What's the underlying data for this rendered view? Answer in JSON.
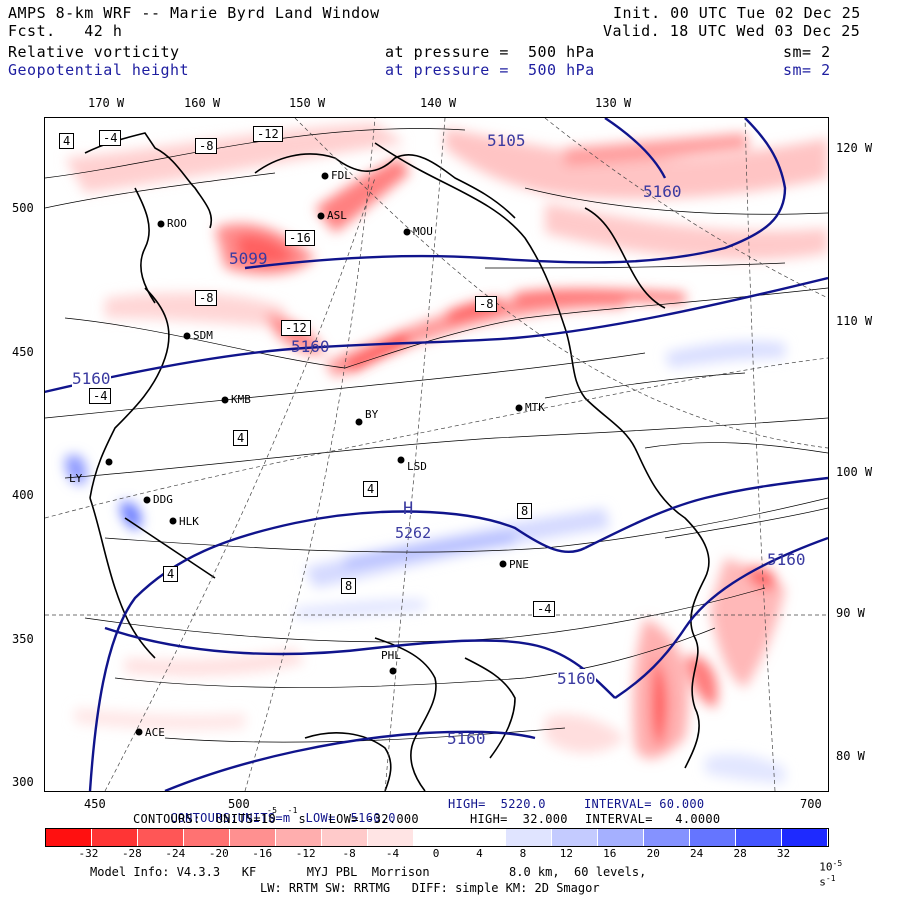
{
  "header": {
    "title_left": "AMPS 8-km WRF -- Marie Byrd Land Window",
    "fcst": "Fcst.   42 h",
    "init": "Init. 00 UTC Tue 02 Dec 25",
    "valid": "Valid. 18 UTC Wed 03 Dec 25",
    "field1": "Relative vorticity",
    "field1_level": "at pressure =  500 hPa",
    "field1_sm": "sm= 2",
    "field2": "Geopotential height",
    "field2_level": "at pressure =  500 hPa",
    "field2_sm": "sm= 2"
  },
  "axes": {
    "top_lon_labels": [
      "170 W",
      "160 W",
      "150 W",
      "140 W",
      "130 W"
    ],
    "right_lon_labels": [
      "120 W",
      "110 W",
      "100 W",
      "90 W",
      "80 W"
    ],
    "left_ticks": [
      "500",
      "450",
      "400",
      "350",
      "300"
    ],
    "bottom_ticks": [
      "450",
      "500",
      "700"
    ]
  },
  "stations": [
    {
      "code": "ROO"
    },
    {
      "code": "FDL"
    },
    {
      "code": "ASL"
    },
    {
      "code": "MOU"
    },
    {
      "code": "SDM"
    },
    {
      "code": "KMB"
    },
    {
      "code": "MTK"
    },
    {
      "code": "BY"
    },
    {
      "code": "LSD"
    },
    {
      "code": "LY"
    },
    {
      "code": "DDG"
    },
    {
      "code": "HLK"
    },
    {
      "code": "PNE"
    },
    {
      "code": "PHL"
    },
    {
      "code": "ACE"
    }
  ],
  "height_labels": [
    "5105",
    "5160",
    "5099",
    "5160",
    "5160",
    "5160",
    "5160",
    "5160"
  ],
  "high_label": {
    "symbol": "H",
    "value": "5262"
  },
  "footer": {
    "contours1": "CONTOURS:UNITS=m  LOW=  5160.0",
    "contours1_high": "HIGH=  5220.0",
    "contours1_interval": "INTERVAL= 60.000",
    "contours2": "CONTOURS:  UNITS=10   s   LOW= -32.000",
    "contours2_exp": "-5  -1",
    "contours2_high": "HIGH=  32.000",
    "contours2_interval": "INTERVAL=   4.0000"
  },
  "colorbar": {
    "labels": [
      "-32",
      "-28",
      "-24",
      "-20",
      "-16",
      "-12",
      "-8",
      "-4",
      "0",
      "4",
      "8",
      "12",
      "16",
      "20",
      "24",
      "28",
      "32"
    ],
    "units": "10",
    "units_exp": "-5",
    "units_s": "s",
    "units_s_exp": "-1",
    "colors": [
      "#ff1010",
      "#ff3535",
      "#ff5656",
      "#ff7272",
      "#ff9090",
      "#ffaeae",
      "#ffcaca",
      "#ffe4e4",
      "#ffffff",
      "#ffffff",
      "#e0e4ff",
      "#c4cbff",
      "#a5b0ff",
      "#8592ff",
      "#6575ff",
      "#4455ff",
      "#1e2aff"
    ]
  },
  "model_info": {
    "line1": "Model Info: V4.3.3   KF       MYJ PBL  Morrison           8.0 km,  60 levels,",
    "line2": "LW: RRTM SW: RRTMG   DIFF: simple KM: 2D Smagor"
  },
  "vort_box_labels": [
    "4",
    "-4",
    "-8",
    "-12",
    "-16",
    "-8",
    "-12",
    "4",
    "-4",
    "-8",
    "4",
    "8",
    "-4",
    "4",
    "8"
  ]
}
